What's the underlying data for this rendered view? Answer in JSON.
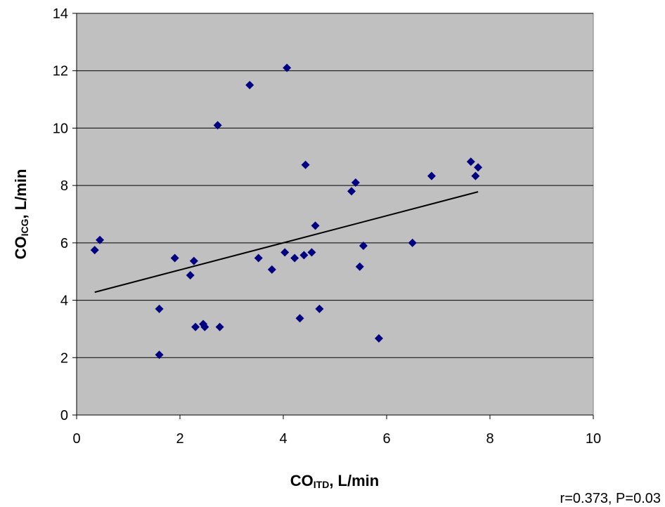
{
  "chart_data": {
    "type": "scatter",
    "xlabel": {
      "main": "CO",
      "sub": "ITD",
      "tail": ", L/min"
    },
    "ylabel": {
      "main": "CO",
      "sub": "ICG",
      "tail": ", L/min"
    },
    "xlim": [
      0,
      10
    ],
    "ylim": [
      0,
      14
    ],
    "xticks": [
      0,
      2,
      4,
      6,
      8,
      10
    ],
    "yticks": [
      0,
      2,
      4,
      6,
      8,
      10,
      12,
      14
    ],
    "grid": {
      "horizontal": true,
      "vertical": false
    },
    "colors": {
      "plot_background": "#c0c0c0",
      "points": "#000080",
      "trendline": "#000000"
    },
    "marker": "diamond",
    "points": [
      {
        "x": 0.35,
        "y": 5.75
      },
      {
        "x": 0.45,
        "y": 6.1
      },
      {
        "x": 1.6,
        "y": 3.7
      },
      {
        "x": 1.6,
        "y": 2.1
      },
      {
        "x": 1.9,
        "y": 5.47
      },
      {
        "x": 2.2,
        "y": 4.87
      },
      {
        "x": 2.27,
        "y": 5.37
      },
      {
        "x": 2.3,
        "y": 3.07
      },
      {
        "x": 2.45,
        "y": 3.17
      },
      {
        "x": 2.48,
        "y": 3.07
      },
      {
        "x": 2.73,
        "y": 10.1
      },
      {
        "x": 2.77,
        "y": 3.07
      },
      {
        "x": 3.35,
        "y": 11.5
      },
      {
        "x": 3.52,
        "y": 5.47
      },
      {
        "x": 3.78,
        "y": 5.07
      },
      {
        "x": 4.03,
        "y": 5.67
      },
      {
        "x": 4.07,
        "y": 12.1
      },
      {
        "x": 4.22,
        "y": 5.47
      },
      {
        "x": 4.32,
        "y": 3.37
      },
      {
        "x": 4.4,
        "y": 5.57
      },
      {
        "x": 4.43,
        "y": 8.72
      },
      {
        "x": 4.55,
        "y": 5.67
      },
      {
        "x": 4.62,
        "y": 6.6
      },
      {
        "x": 4.7,
        "y": 3.7
      },
      {
        "x": 5.32,
        "y": 7.8
      },
      {
        "x": 5.4,
        "y": 8.1
      },
      {
        "x": 5.48,
        "y": 5.17
      },
      {
        "x": 5.55,
        "y": 5.9
      },
      {
        "x": 5.85,
        "y": 2.67
      },
      {
        "x": 6.5,
        "y": 6.0
      },
      {
        "x": 6.87,
        "y": 8.33
      },
      {
        "x": 7.63,
        "y": 8.83
      },
      {
        "x": 7.72,
        "y": 8.33
      },
      {
        "x": 7.77,
        "y": 8.63
      }
    ],
    "trendline": {
      "x": [
        0.35,
        7.77
      ],
      "y": [
        4.28,
        7.78
      ]
    },
    "annotation": "r=0.373, P=0.03"
  }
}
